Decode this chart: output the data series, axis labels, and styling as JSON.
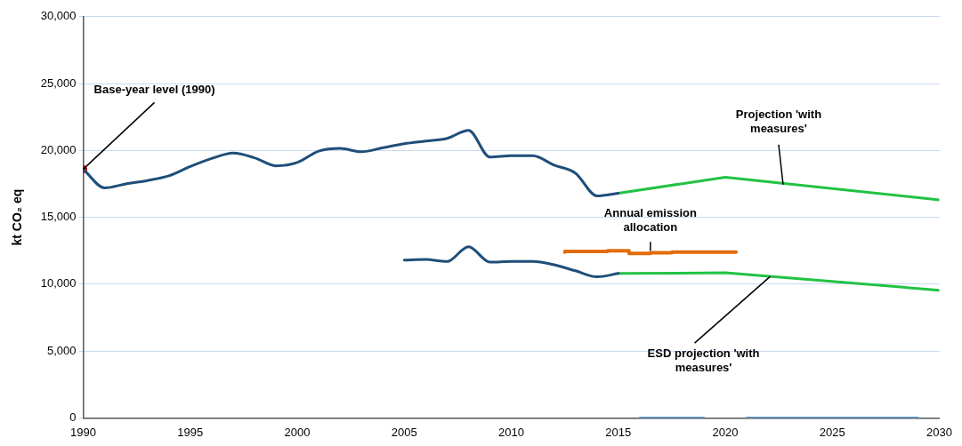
{
  "chart_data": {
    "type": "line",
    "ylabel": "kt CO₂ eq",
    "xlim": [
      1990,
      2030
    ],
    "xticks": [
      1990,
      1995,
      2000,
      2005,
      2010,
      2015,
      2020,
      2025,
      2030
    ],
    "ylim": [
      0,
      30000
    ],
    "yticks": [
      {
        "value": 0,
        "label": "0"
      },
      {
        "value": 5000,
        "label": "5,000"
      },
      {
        "value": 10000,
        "label": "10,000"
      },
      {
        "value": 15000,
        "label": "15,000"
      },
      {
        "value": 20000,
        "label": "20,000"
      },
      {
        "value": 25000,
        "label": "25,000"
      },
      {
        "value": 30000,
        "label": "30,000"
      }
    ],
    "grid": "y",
    "legend": false,
    "marker": "none",
    "series": [
      {
        "color": "#1f4e79",
        "x": [
          1990,
          1991,
          1992,
          1993,
          1994,
          1995,
          1996,
          1997,
          1998,
          1999,
          2000,
          2001,
          2002,
          2003,
          2004,
          2005,
          2006,
          2007,
          2008,
          2009,
          2010,
          2011,
          2012,
          2013,
          2014,
          2015
        ],
        "values": [
          18600,
          17200,
          17500,
          17750,
          18100,
          18800,
          19400,
          19800,
          19450,
          18850,
          19100,
          19950,
          20150,
          19900,
          20200,
          20500,
          20700,
          20900,
          21500,
          19500,
          19600,
          19600,
          18900,
          18300,
          16600,
          16800
        ]
      },
      {
        "color": "#22c244",
        "x": [
          2015,
          2020,
          2030
        ],
        "values": [
          16800,
          18000,
          16300
        ]
      },
      {
        "color": "#1f4e79",
        "x": [
          2005,
          2006,
          2007,
          2008,
          2009,
          2010,
          2011,
          2012,
          2013,
          2014,
          2015
        ],
        "values": [
          11800,
          11850,
          11700,
          12800,
          11650,
          11700,
          11700,
          11450,
          11000,
          10550,
          10800
        ]
      },
      {
        "color": "#22c244",
        "x": [
          2015,
          2020,
          2030
        ],
        "values": [
          10800,
          10850,
          9550
        ]
      },
      {
        "type": "step",
        "color": "#e36c0a",
        "x": [
          2012.5,
          2013.5,
          2014.5,
          2015.5,
          2016.5,
          2017.5,
          2018.5,
          2019.5,
          2020.5
        ],
        "values": [
          12400,
          12450,
          12450,
          12500,
          12300,
          12350,
          12400,
          12400,
          12400
        ]
      },
      {
        "color": "#5b9bd5",
        "x": [
          2016,
          2019,
          2020,
          2021,
          2029
        ],
        "values": [
          0,
          0,
          null,
          0,
          0
        ]
      },
      {
        "type": "scatter",
        "color": "#c00000",
        "marker": "circle",
        "x": [
          1990
        ],
        "values": [
          18600
        ]
      }
    ],
    "annotations": [
      {
        "text": "Base-year level (1990)",
        "x": 1990,
        "y": 18600
      },
      {
        "text": "Projection 'with measures'",
        "x": 2022.7,
        "y": 17450
      },
      {
        "text": "Annual emission allocation",
        "x": 2016.5,
        "y": 12500
      },
      {
        "text": "ESD projection 'with measures'",
        "x": 2022.1,
        "y": 10580
      }
    ]
  }
}
